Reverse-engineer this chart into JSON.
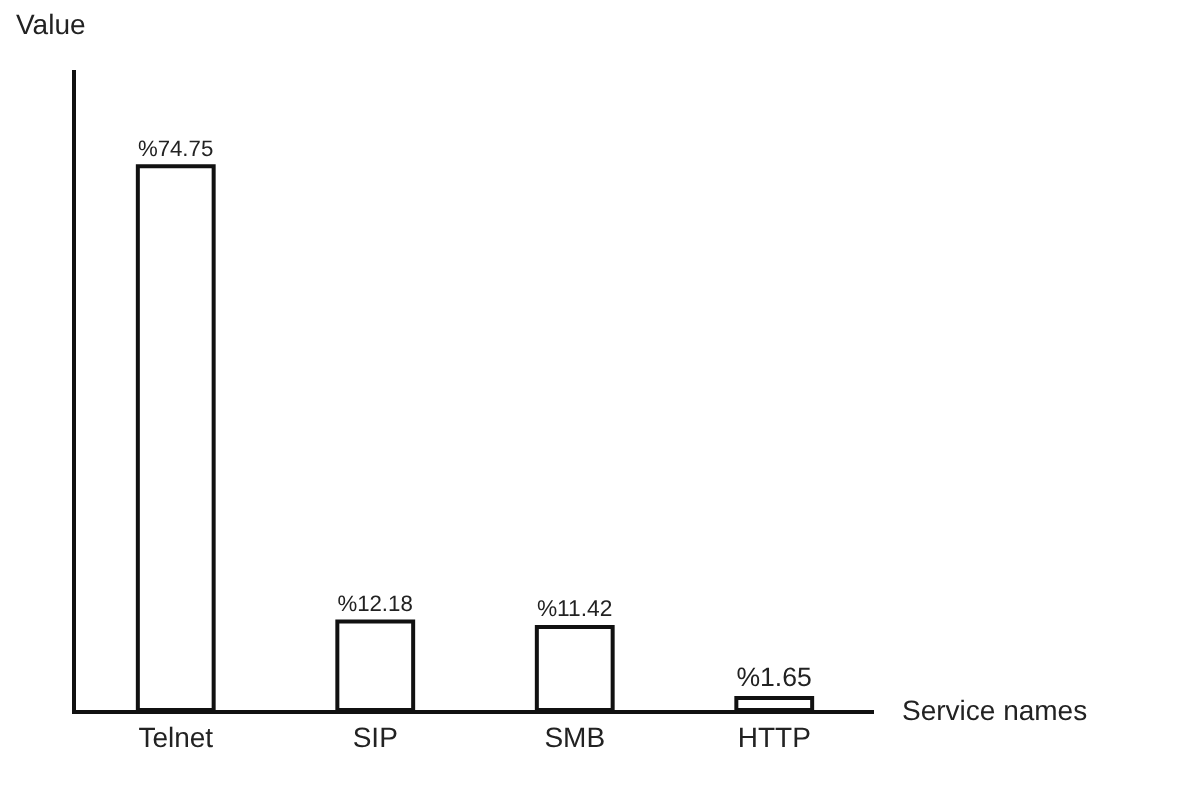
{
  "chart_data": {
    "type": "bar",
    "xlabel": "Service names",
    "ylabel": "Value",
    "categories": [
      "Telnet",
      "SIP",
      "SMB",
      "HTTP"
    ],
    "values": [
      74.75,
      12.18,
      11.42,
      1.65
    ],
    "value_labels": [
      "%74.75",
      "%12.18",
      "%11.42",
      "%1.65"
    ],
    "color": "#ffffff",
    "ylim": [
      0,
      88
    ],
    "tick_labels": "x"
  }
}
